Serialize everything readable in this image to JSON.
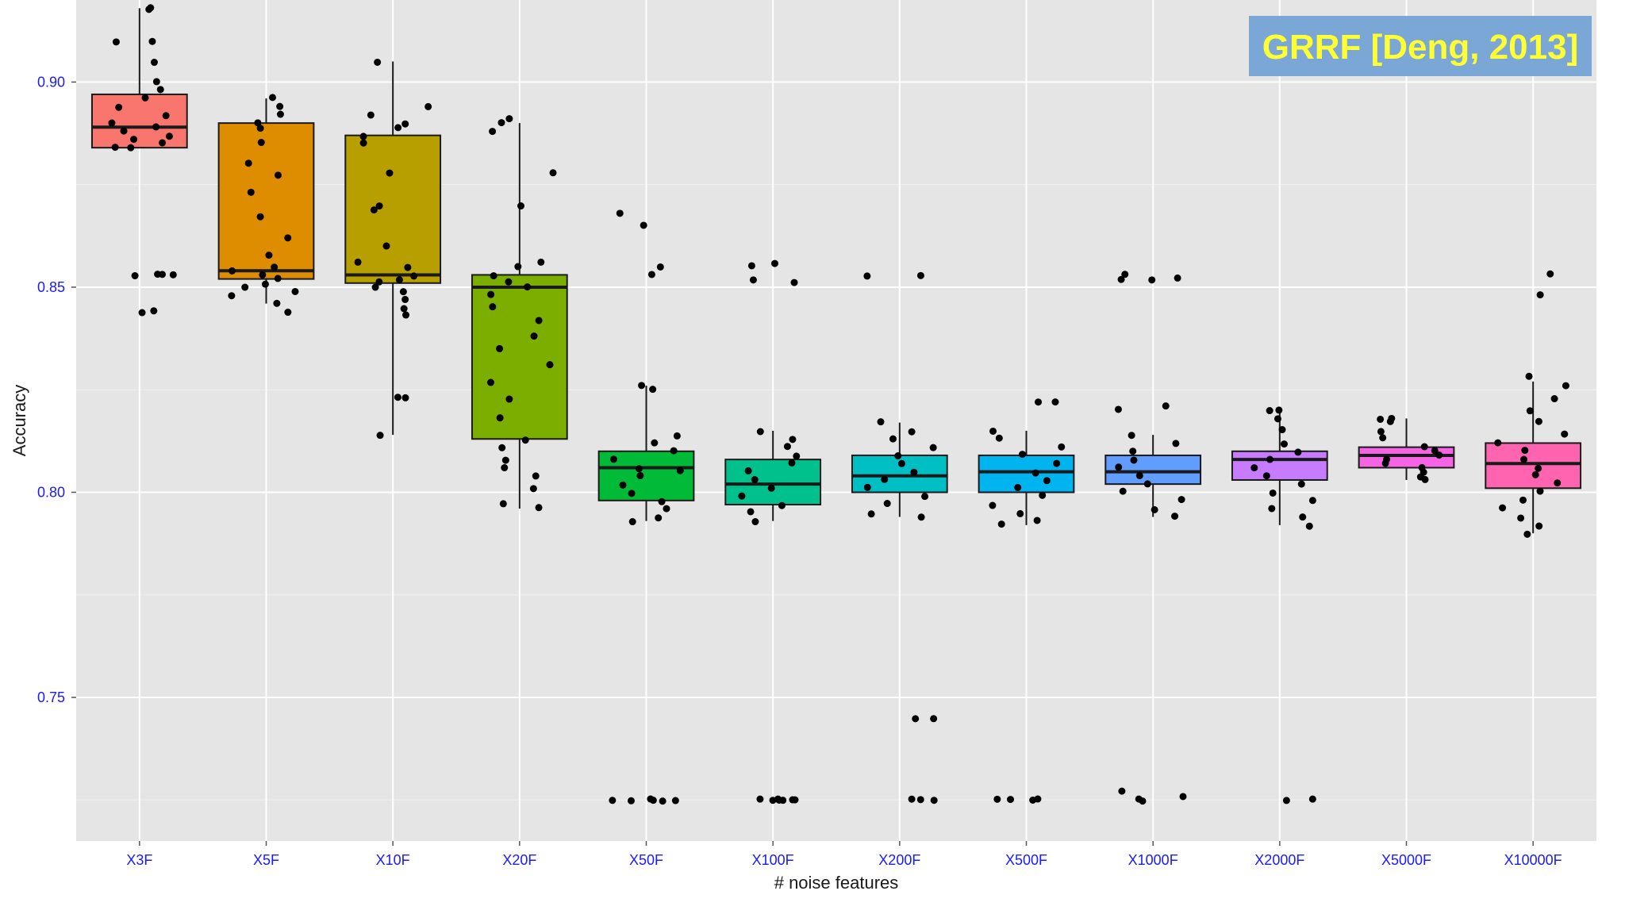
{
  "chart_data": {
    "type": "boxplot",
    "title": "GRRF [Deng, 2013]",
    "xlabel": "# noise features",
    "ylabel": "Accuracy",
    "ylim": [
      0.715,
      0.92
    ],
    "yticks": [
      0.75,
      0.8,
      0.85,
      0.9
    ],
    "ytick_labels": [
      "0.75",
      "0.80",
      "0.85",
      "0.90"
    ],
    "grid": true,
    "legend": "none",
    "categories": [
      "X3F",
      "X5F",
      "X10F",
      "X20F",
      "X50F",
      "X100F",
      "X200F",
      "X500F",
      "X1000F",
      "X2000F",
      "X5000F",
      "X10000F"
    ],
    "boxes": [
      {
        "name": "X3F",
        "color": "#F8766D",
        "q1": 0.884,
        "median": 0.889,
        "q3": 0.897,
        "whisker_low": 0.884,
        "whisker_high": 0.918
      },
      {
        "name": "X5F",
        "color": "#DE8C00",
        "q1": 0.852,
        "median": 0.854,
        "q3": 0.89,
        "whisker_low": 0.846,
        "whisker_high": 0.896
      },
      {
        "name": "X10F",
        "color": "#B79F00",
        "q1": 0.851,
        "median": 0.853,
        "q3": 0.887,
        "whisker_low": 0.814,
        "whisker_high": 0.905
      },
      {
        "name": "X20F",
        "color": "#7CAE00",
        "q1": 0.813,
        "median": 0.85,
        "q3": 0.853,
        "whisker_low": 0.796,
        "whisker_high": 0.89
      },
      {
        "name": "X50F",
        "color": "#00BA38",
        "q1": 0.798,
        "median": 0.806,
        "q3": 0.81,
        "whisker_low": 0.793,
        "whisker_high": 0.826
      },
      {
        "name": "X100F",
        "color": "#00C08B",
        "q1": 0.797,
        "median": 0.802,
        "q3": 0.808,
        "whisker_low": 0.793,
        "whisker_high": 0.815
      },
      {
        "name": "X200F",
        "color": "#00BFC4",
        "q1": 0.8,
        "median": 0.804,
        "q3": 0.809,
        "whisker_low": 0.794,
        "whisker_high": 0.817
      },
      {
        "name": "X500F",
        "color": "#00B4F0",
        "q1": 0.8,
        "median": 0.805,
        "q3": 0.809,
        "whisker_low": 0.792,
        "whisker_high": 0.815
      },
      {
        "name": "X1000F",
        "color": "#619CFF",
        "q1": 0.802,
        "median": 0.805,
        "q3": 0.809,
        "whisker_low": 0.794,
        "whisker_high": 0.814
      },
      {
        "name": "X2000F",
        "color": "#C77CFF",
        "q1": 0.803,
        "median": 0.808,
        "q3": 0.81,
        "whisker_low": 0.792,
        "whisker_high": 0.82
      },
      {
        "name": "X5000F",
        "color": "#F564E3",
        "q1": 0.806,
        "median": 0.809,
        "q3": 0.811,
        "whisker_low": 0.803,
        "whisker_high": 0.818
      },
      {
        "name": "X10000F",
        "color": "#FF64B0",
        "q1": 0.801,
        "median": 0.807,
        "q3": 0.812,
        "whisker_low": 0.79,
        "whisker_high": 0.827
      }
    ],
    "points": [
      [
        0.918,
        0.918,
        0.91,
        0.91,
        0.905,
        0.9,
        0.898,
        0.896,
        0.894,
        0.892,
        0.89,
        0.889,
        0.888,
        0.887,
        0.886,
        0.885,
        0.884,
        0.884,
        0.853,
        0.853,
        0.853,
        0.853,
        0.844,
        0.844
      ],
      [
        0.896,
        0.894,
        0.892,
        0.89,
        0.889,
        0.885,
        0.88,
        0.877,
        0.873,
        0.867,
        0.862,
        0.858,
        0.855,
        0.854,
        0.853,
        0.852,
        0.851,
        0.85,
        0.849,
        0.848,
        0.846,
        0.844
      ],
      [
        0.905,
        0.894,
        0.892,
        0.89,
        0.889,
        0.887,
        0.885,
        0.878,
        0.87,
        0.869,
        0.86,
        0.856,
        0.855,
        0.853,
        0.852,
        0.851,
        0.85,
        0.849,
        0.847,
        0.845,
        0.843,
        0.823,
        0.823,
        0.814
      ],
      [
        0.891,
        0.89,
        0.888,
        0.878,
        0.87,
        0.856,
        0.855,
        0.853,
        0.851,
        0.85,
        0.848,
        0.845,
        0.842,
        0.838,
        0.835,
        0.831,
        0.827,
        0.823,
        0.818,
        0.813,
        0.811,
        0.808,
        0.806,
        0.804,
        0.801,
        0.797,
        0.796
      ],
      [
        0.868,
        0.865,
        0.855,
        0.853,
        0.826,
        0.825,
        0.814,
        0.812,
        0.81,
        0.808,
        0.806,
        0.805,
        0.804,
        0.802,
        0.8,
        0.798,
        0.796,
        0.794,
        0.793,
        0.725,
        0.725,
        0.725,
        0.725,
        0.725,
        0.725
      ],
      [
        0.856,
        0.855,
        0.852,
        0.851,
        0.815,
        0.813,
        0.811,
        0.809,
        0.807,
        0.805,
        0.803,
        0.801,
        0.799,
        0.797,
        0.795,
        0.793,
        0.725,
        0.725,
        0.725,
        0.725,
        0.725,
        0.725,
        0.725
      ],
      [
        0.853,
        0.853,
        0.817,
        0.815,
        0.813,
        0.811,
        0.809,
        0.807,
        0.805,
        0.803,
        0.801,
        0.799,
        0.797,
        0.795,
        0.794,
        0.745,
        0.745,
        0.725,
        0.725,
        0.725
      ],
      [
        0.822,
        0.822,
        0.815,
        0.813,
        0.811,
        0.809,
        0.807,
        0.805,
        0.803,
        0.801,
        0.799,
        0.797,
        0.795,
        0.793,
        0.792,
        0.725,
        0.725,
        0.725,
        0.725
      ],
      [
        0.853,
        0.852,
        0.852,
        0.852,
        0.821,
        0.82,
        0.814,
        0.812,
        0.81,
        0.808,
        0.806,
        0.804,
        0.802,
        0.8,
        0.798,
        0.796,
        0.794,
        0.727,
        0.726,
        0.725,
        0.725
      ],
      [
        0.82,
        0.82,
        0.818,
        0.815,
        0.812,
        0.81,
        0.808,
        0.806,
        0.804,
        0.802,
        0.8,
        0.798,
        0.796,
        0.794,
        0.792,
        0.725,
        0.725
      ],
      [
        0.818,
        0.818,
        0.817,
        0.815,
        0.813,
        0.811,
        0.81,
        0.809,
        0.808,
        0.807,
        0.806,
        0.805,
        0.804,
        0.803
      ],
      [
        0.853,
        0.848,
        0.828,
        0.826,
        0.823,
        0.82,
        0.817,
        0.814,
        0.812,
        0.81,
        0.808,
        0.806,
        0.804,
        0.802,
        0.8,
        0.798,
        0.796,
        0.794,
        0.792,
        0.79
      ]
    ],
    "badge_color": "#7ba7d6"
  }
}
